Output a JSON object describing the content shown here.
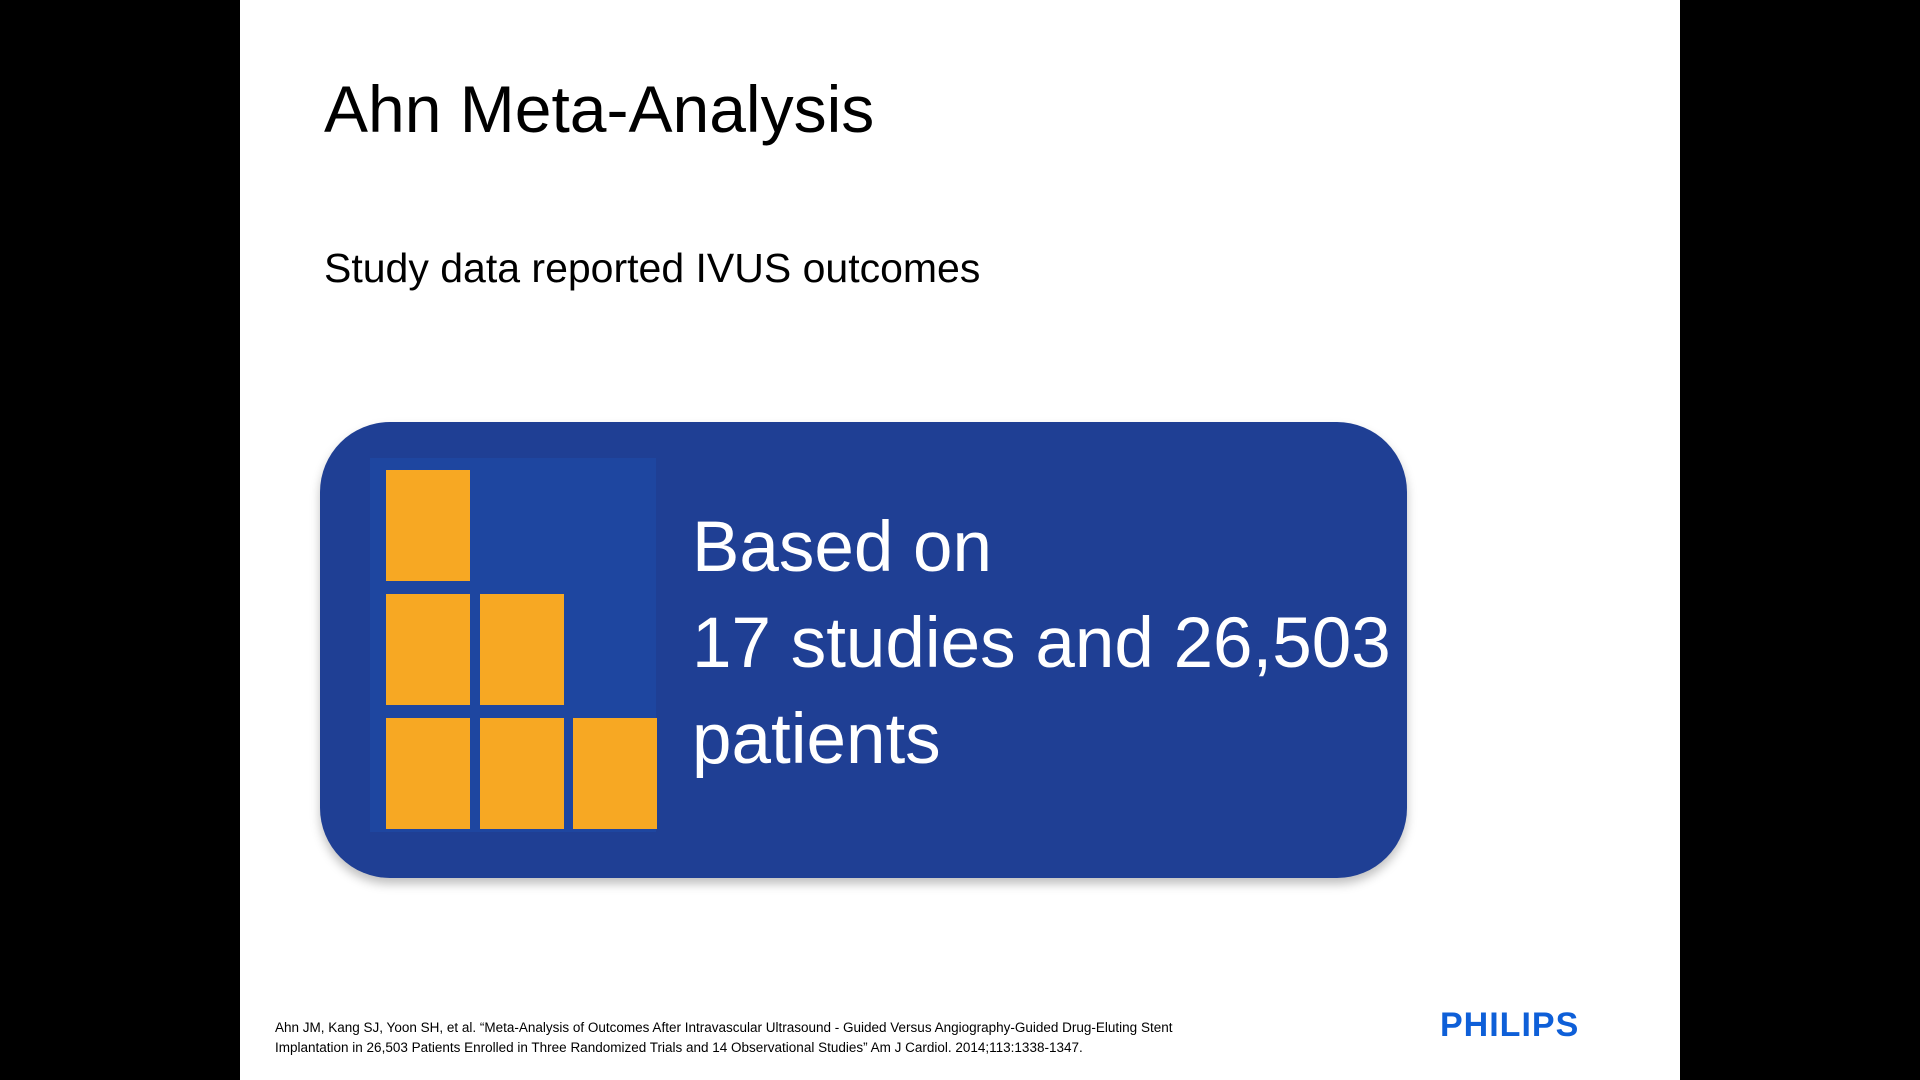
{
  "slide": {
    "title": "Ahn Meta-Analysis",
    "subtitle": "Study data reported IVUS outcomes",
    "stat_box": {
      "line1": "Based on",
      "line2": "17 studies and 26,503",
      "line3": "patients"
    },
    "citation": {
      "line1": "Ahn JM, Kang SJ, Yoon SH, et al. “Meta-Analysis of Outcomes After Intravascular Ultrasound  - Guided Versus Angiography-Guided Drug-Eluting Stent",
      "line2": "Implantation in 26,503 Patients Enrolled in Three Randomized Trials and 14 Observational Studies” Am  J Cardiol. 2014;113:1338-1347."
    },
    "logo": "PHILIPS"
  },
  "colors": {
    "background": "#ffffff",
    "frame": "#000000",
    "stat_box": "#1f3f94",
    "icon_panel": "#1e46a0",
    "blocks": "#f7a823",
    "logo": "#0e5fd8"
  },
  "icons": [
    "stacked-blocks-icon"
  ]
}
